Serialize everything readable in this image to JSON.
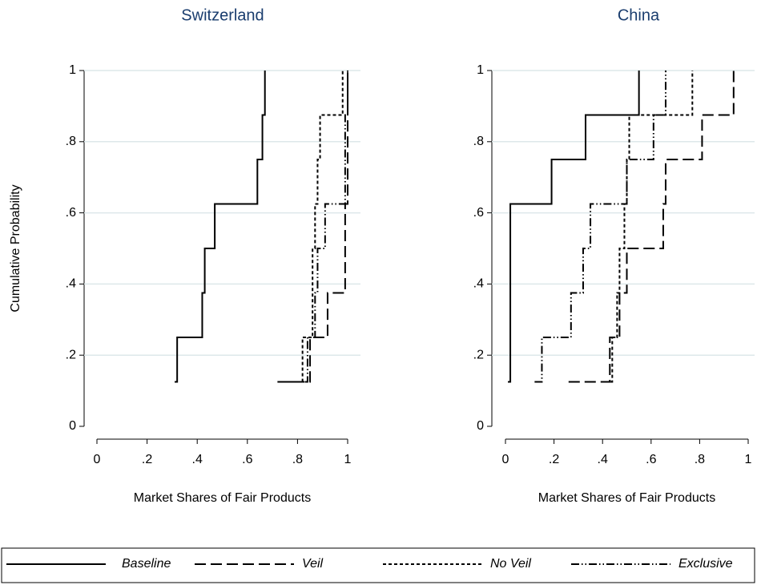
{
  "chart_data": [
    {
      "type": "step",
      "title": "Switzerland",
      "x_label": "Market Shares of Fair Products",
      "y_label": "Cumulative Probability",
      "xlim": [
        0,
        1
      ],
      "ylim": [
        0,
        1
      ],
      "grid": true,
      "xticks": [
        0,
        {
          "value": 0.2,
          "label": ".2"
        },
        {
          "value": 0.4,
          "label": ".4"
        },
        {
          "value": 0.6,
          "label": ".6"
        },
        {
          "value": 0.8,
          "label": ".8"
        },
        1
      ],
      "yticks": [
        0,
        {
          "value": 0.2,
          "label": ".2"
        },
        {
          "value": 0.4,
          "label": ".4"
        },
        {
          "value": 0.6,
          "label": ".6"
        },
        {
          "value": 0.8,
          "label": ".8"
        },
        1
      ],
      "series": [
        {
          "name": "Baseline",
          "color": "#000000",
          "line_style": "solid",
          "x": [
            0.31,
            0.32,
            0.42,
            0.43,
            0.47,
            0.64,
            0.66,
            0.67
          ],
          "values": [
            0.125,
            0.25,
            0.375,
            0.5,
            0.625,
            0.75,
            0.875,
            1
          ]
        },
        {
          "name": "Veil",
          "color": "#000000",
          "line_style": "longdash",
          "x": [
            0.72,
            0.85,
            0.92,
            0.99,
            0.99,
            1,
            1,
            1
          ],
          "values": [
            0.125,
            0.25,
            0.375,
            0.5,
            0.625,
            0.75,
            0.875,
            1
          ]
        },
        {
          "name": "No Veil",
          "color": "#000000",
          "line_style": "shortdash",
          "x": [
            0.73,
            0.82,
            0.86,
            0.86,
            0.87,
            0.88,
            0.89,
            0.98
          ],
          "values": [
            0.125,
            0.25,
            0.375,
            0.5,
            0.625,
            0.75,
            0.875,
            1
          ]
        },
        {
          "name": "Exclusive",
          "color": "#000000",
          "line_style": "dashdotdot",
          "x": [
            0.76,
            0.84,
            0.87,
            0.88,
            0.91,
            0.99,
            0.99,
            1
          ],
          "values": [
            0.125,
            0.25,
            0.375,
            0.5,
            0.625,
            0.75,
            0.875,
            1
          ]
        }
      ]
    },
    {
      "type": "step",
      "title": "China",
      "x_label": "Market Shares of Fair Products",
      "xlim": [
        0,
        1
      ],
      "ylim": [
        0,
        1
      ],
      "grid": true,
      "xticks": [
        0,
        {
          "value": 0.2,
          "label": ".2"
        },
        {
          "value": 0.4,
          "label": ".4"
        },
        {
          "value": 0.6,
          "label": ".6"
        },
        {
          "value": 0.8,
          "label": ".8"
        },
        1
      ],
      "yticks": [
        0,
        {
          "value": 0.2,
          "label": ".2"
        },
        {
          "value": 0.4,
          "label": ".4"
        },
        {
          "value": 0.6,
          "label": ".6"
        },
        {
          "value": 0.8,
          "label": ".8"
        },
        1
      ],
      "series": [
        {
          "color": "#000000",
          "line_style": "solid",
          "x": [
            0.01,
            0.02,
            0.02,
            0.02,
            0.02,
            0.19,
            0.33,
            0.55
          ],
          "values": [
            0.125,
            0.25,
            0.375,
            0.5,
            0.625,
            0.75,
            0.875,
            1
          ]
        },
        {
          "color": "#000000",
          "line_style": "longdash",
          "x": [
            0.26,
            0.43,
            0.47,
            0.5,
            0.65,
            0.66,
            0.81,
            0.94
          ],
          "values": [
            0.125,
            0.25,
            0.375,
            0.5,
            0.625,
            0.75,
            0.875,
            1
          ]
        },
        {
          "color": "#000000",
          "line_style": "shortdash",
          "x": [
            0.41,
            0.44,
            0.46,
            0.47,
            0.49,
            0.5,
            0.51,
            0.77
          ],
          "values": [
            0.125,
            0.25,
            0.375,
            0.5,
            0.625,
            0.75,
            0.875,
            1
          ]
        },
        {
          "color": "#000000",
          "line_style": "dashdotdot",
          "x": [
            0.12,
            0.15,
            0.27,
            0.32,
            0.35,
            0.5,
            0.61,
            0.66
          ],
          "values": [
            0.125,
            0.25,
            0.375,
            0.5,
            0.625,
            0.75,
            0.875,
            1
          ]
        }
      ]
    }
  ]
}
